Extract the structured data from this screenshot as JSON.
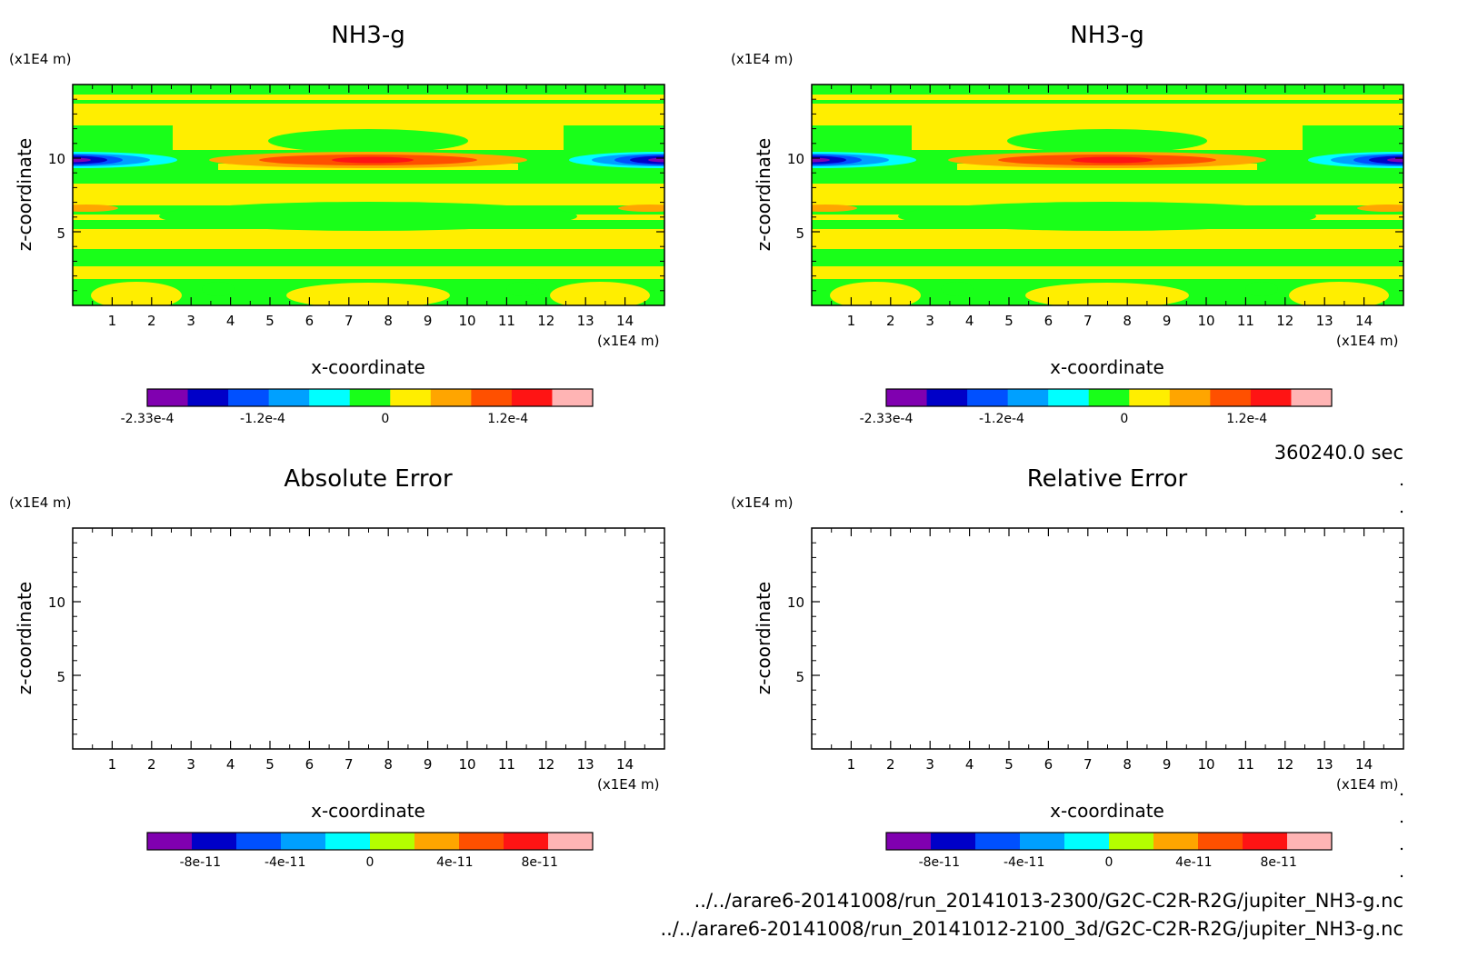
{
  "chart_data": [
    {
      "type": "heatmap",
      "title": "NH3-g",
      "xlabel": "x-coordinate",
      "ylabel": "z-coordinate",
      "x_unit": "(x1E4 m)",
      "y_unit": "(x1E4 m)",
      "xlim": [
        0,
        15
      ],
      "ylim": [
        0,
        15
      ],
      "xticks": [
        1,
        2,
        3,
        4,
        5,
        6,
        7,
        8,
        9,
        10,
        11,
        12,
        13,
        14
      ],
      "yticks": [
        5,
        10
      ],
      "colorbar": {
        "min": -0.000233,
        "max": 0.000203,
        "ticks": [
          {
            "value": -0.000233,
            "label": "-2.33e-4"
          },
          {
            "value": -0.00012,
            "label": "-1.2e-4"
          },
          {
            "value": 0,
            "label": "0"
          },
          {
            "value": 0.00012,
            "label": "1.2e-4"
          }
        ],
        "colors": [
          "#8000b0",
          "#0000c8",
          "#0050ff",
          "#00a0ff",
          "#00ffff",
          "#19ff19",
          "#ffee00",
          "#ffa500",
          "#ff5000",
          "#ff1414",
          "#ffb4b4"
        ]
      },
      "bands": [
        {
          "z": [
            14.0,
            14.8
          ],
          "level": 0
        },
        {
          "z": [
            13.6,
            14.0
          ],
          "level": 0
        },
        {
          "z": [
            13.0,
            13.6
          ],
          "level": 0
        },
        {
          "z": [
            11.0,
            13.0
          ],
          "level": 0
        },
        {
          "z": [
            10.5,
            11.0
          ],
          "level": 0
        },
        {
          "z": [
            9.6,
            10.5
          ],
          "level": 1
        },
        {
          "z": [
            8.0,
            9.6
          ],
          "level": 0
        },
        {
          "z": [
            6.5,
            8.0
          ],
          "level": 0
        },
        {
          "z": [
            5.0,
            6.5
          ],
          "level": 0
        },
        {
          "z": [
            3.8,
            5.0
          ],
          "level": 0
        },
        {
          "z": [
            2.5,
            3.8
          ],
          "level": 0
        },
        {
          "z": [
            0,
            2.5
          ],
          "level": 0
        }
      ]
    },
    {
      "type": "heatmap",
      "title": "NH3-g",
      "xlabel": "x-coordinate",
      "ylabel": "z-coordinate",
      "x_unit": "(x1E4 m)",
      "y_unit": "(x1E4 m)",
      "xlim": [
        0,
        15
      ],
      "ylim": [
        0,
        15
      ],
      "xticks": [
        1,
        2,
        3,
        4,
        5,
        6,
        7,
        8,
        9,
        10,
        11,
        12,
        13,
        14
      ],
      "yticks": [
        5,
        10
      ],
      "colorbar": {
        "min": -0.000233,
        "max": 0.000203,
        "ticks": [
          {
            "value": -0.000233,
            "label": "-2.33e-4"
          },
          {
            "value": -0.00012,
            "label": "-1.2e-4"
          },
          {
            "value": 0,
            "label": "0"
          },
          {
            "value": 0.00012,
            "label": "1.2e-4"
          }
        ],
        "colors": [
          "#8000b0",
          "#0000c8",
          "#0050ff",
          "#00a0ff",
          "#00ffff",
          "#19ff19",
          "#ffee00",
          "#ffa500",
          "#ff5000",
          "#ff1414",
          "#ffb4b4"
        ]
      }
    },
    {
      "type": "heatmap",
      "title": "Absolute Error",
      "xlabel": "x-coordinate",
      "ylabel": "z-coordinate",
      "x_unit": "(x1E4 m)",
      "y_unit": "(x1E4 m)",
      "xlim": [
        0,
        15
      ],
      "ylim": [
        0,
        15
      ],
      "xticks": [
        1,
        2,
        3,
        4,
        5,
        6,
        7,
        8,
        9,
        10,
        11,
        12,
        13,
        14
      ],
      "yticks": [
        5,
        10
      ],
      "empty": true,
      "colorbar": {
        "min": -1.05e-10,
        "max": 1.05e-10,
        "ticks": [
          {
            "value": -8e-11,
            "label": "-8e-11"
          },
          {
            "value": -4e-11,
            "label": "-4e-11"
          },
          {
            "value": 0,
            "label": "0"
          },
          {
            "value": 4e-11,
            "label": "4e-11"
          },
          {
            "value": 8e-11,
            "label": "8e-11"
          }
        ],
        "colors": [
          "#8000b0",
          "#0000c8",
          "#0050ff",
          "#00a0ff",
          "#00ffff",
          "#b4ff00",
          "#ffa500",
          "#ff5000",
          "#ff1414",
          "#ffb4b4"
        ]
      }
    },
    {
      "type": "heatmap",
      "title": "Relative Error",
      "xlabel": "x-coordinate",
      "ylabel": "z-coordinate",
      "x_unit": "(x1E4 m)",
      "y_unit": "(x1E4 m)",
      "xlim": [
        0,
        15
      ],
      "ylim": [
        0,
        15
      ],
      "xticks": [
        1,
        2,
        3,
        4,
        5,
        6,
        7,
        8,
        9,
        10,
        11,
        12,
        13,
        14
      ],
      "yticks": [
        5,
        10
      ],
      "empty": true,
      "colorbar": {
        "min": -1.05e-10,
        "max": 1.05e-10,
        "ticks": [
          {
            "value": -8e-11,
            "label": "-8e-11"
          },
          {
            "value": -4e-11,
            "label": "-4e-11"
          },
          {
            "value": 0,
            "label": "0"
          },
          {
            "value": 4e-11,
            "label": "4e-11"
          },
          {
            "value": 8e-11,
            "label": "8e-11"
          }
        ],
        "colors": [
          "#8000b0",
          "#0000c8",
          "#0050ff",
          "#00a0ff",
          "#00ffff",
          "#b4ff00",
          "#ffa500",
          "#ff5000",
          "#ff1414",
          "#ffb4b4"
        ]
      }
    }
  ],
  "time_label": "360240.0 sec",
  "file_paths": [
    "../../arare6-20141008/run_20141013-2300/G2C-C2R-R2G/jupiter_NH3-g.nc",
    "../../arare6-20141008/run_20141012-2100_3d/G2C-C2R-R2G/jupiter_NH3-g.nc"
  ],
  "field_colors": {
    "green": "#19ff19",
    "yellow": "#ffee00",
    "orange": "#ffa500",
    "red_orange": "#ff5000",
    "red": "#ff1414",
    "cyan": "#00ffff",
    "light_blue": "#00a0ff",
    "blue": "#0050ff",
    "navy": "#0000c8",
    "purple": "#8000b0"
  }
}
